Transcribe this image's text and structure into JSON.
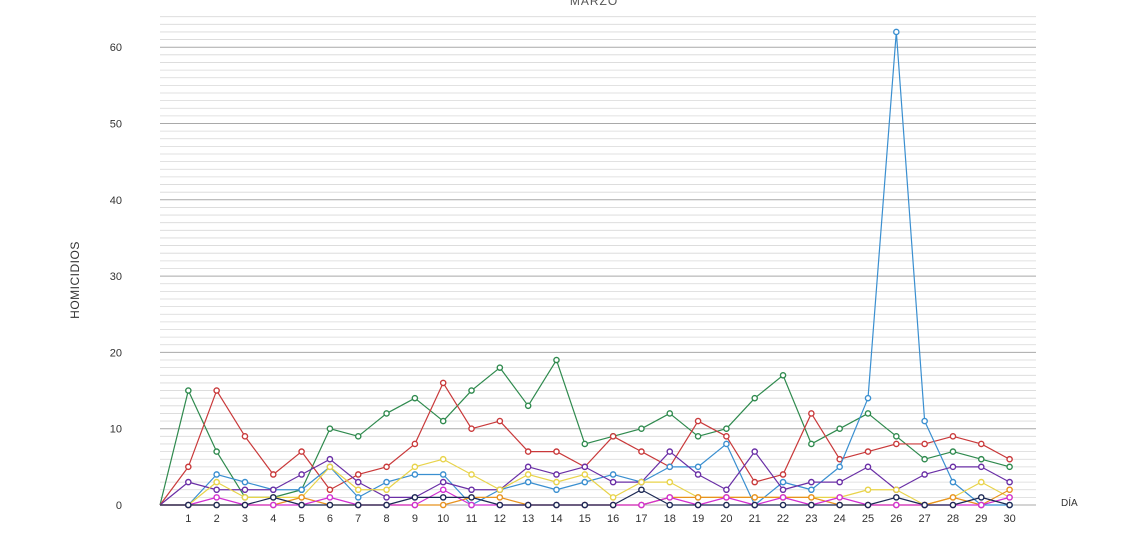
{
  "chart_data": {
    "type": "line",
    "title": "MARZO",
    "xlabel": "DÍA",
    "ylabel": "HOMICIDIOS",
    "x": [
      0,
      1,
      2,
      3,
      4,
      5,
      6,
      7,
      8,
      9,
      10,
      11,
      12,
      13,
      14,
      15,
      16,
      17,
      18,
      19,
      20,
      21,
      22,
      23,
      24,
      25,
      26,
      27,
      28,
      29,
      30
    ],
    "x_tick_labels": [
      "1",
      "2",
      "3",
      "4",
      "5",
      "6",
      "7",
      "8",
      "9",
      "10",
      "11",
      "12",
      "13",
      "14",
      "15",
      "16",
      "17",
      "18",
      "19",
      "20",
      "21",
      "22",
      "23",
      "24",
      "25",
      "26",
      "27",
      "28",
      "29",
      "30"
    ],
    "y_ticks": [
      0,
      10,
      20,
      30,
      40,
      50,
      60
    ],
    "ylim": [
      0,
      64
    ],
    "grid": true,
    "legend": "none",
    "series": [
      {
        "color": "#2f8a4e",
        "values": [
          0,
          15,
          7,
          1,
          1,
          2,
          10,
          9,
          12,
          14,
          11,
          15,
          18,
          13,
          19,
          8,
          9,
          10,
          12,
          9,
          10,
          14,
          17,
          8,
          10,
          12,
          9,
          6,
          7,
          6,
          5
        ]
      },
      {
        "color": "#c9393a",
        "values": [
          0,
          5,
          15,
          9,
          4,
          7,
          2,
          4,
          5,
          8,
          16,
          10,
          11,
          7,
          7,
          5,
          9,
          7,
          5,
          11,
          9,
          3,
          4,
          12,
          6,
          7,
          8,
          8,
          9,
          8,
          6
        ]
      },
      {
        "color": "#3a8fd0",
        "values": [
          0,
          0,
          4,
          3,
          2,
          2,
          5,
          1,
          3,
          4,
          4,
          0,
          2,
          3,
          2,
          3,
          4,
          3,
          5,
          5,
          8,
          0,
          3,
          2,
          5,
          14,
          62,
          11,
          3,
          0,
          0
        ]
      },
      {
        "color": "#6a2fa6",
        "values": [
          0,
          3,
          2,
          2,
          2,
          4,
          6,
          3,
          1,
          1,
          3,
          2,
          2,
          5,
          4,
          5,
          3,
          3,
          7,
          4,
          2,
          7,
          2,
          3,
          3,
          5,
          2,
          4,
          5,
          5,
          3
        ]
      },
      {
        "color": "#e8d34a",
        "values": [
          0,
          0,
          3,
          1,
          1,
          1,
          5,
          2,
          2,
          5,
          6,
          4,
          2,
          4,
          3,
          4,
          1,
          3,
          3,
          1,
          1,
          1,
          1,
          1,
          1,
          2,
          2,
          0,
          1,
          3,
          1
        ]
      },
      {
        "color": "#e8921f",
        "values": [
          0,
          0,
          0,
          0,
          0,
          1,
          0,
          0,
          0,
          0,
          0,
          1,
          1,
          0,
          0,
          0,
          0,
          0,
          1,
          1,
          1,
          1,
          1,
          1,
          0,
          0,
          0,
          0,
          1,
          0,
          2
        ]
      },
      {
        "color": "#d12fd1",
        "values": [
          0,
          0,
          1,
          0,
          0,
          0,
          1,
          0,
          0,
          0,
          2,
          0,
          0,
          0,
          0,
          0,
          0,
          0,
          1,
          0,
          1,
          0,
          1,
          0,
          1,
          0,
          0,
          0,
          0,
          0,
          1
        ]
      },
      {
        "color": "#1d2a55",
        "values": [
          0,
          0,
          0,
          0,
          1,
          0,
          0,
          0,
          0,
          1,
          1,
          1,
          0,
          0,
          0,
          0,
          0,
          2,
          0,
          0,
          0,
          0,
          0,
          0,
          0,
          0,
          1,
          0,
          0,
          1,
          0
        ]
      }
    ]
  }
}
